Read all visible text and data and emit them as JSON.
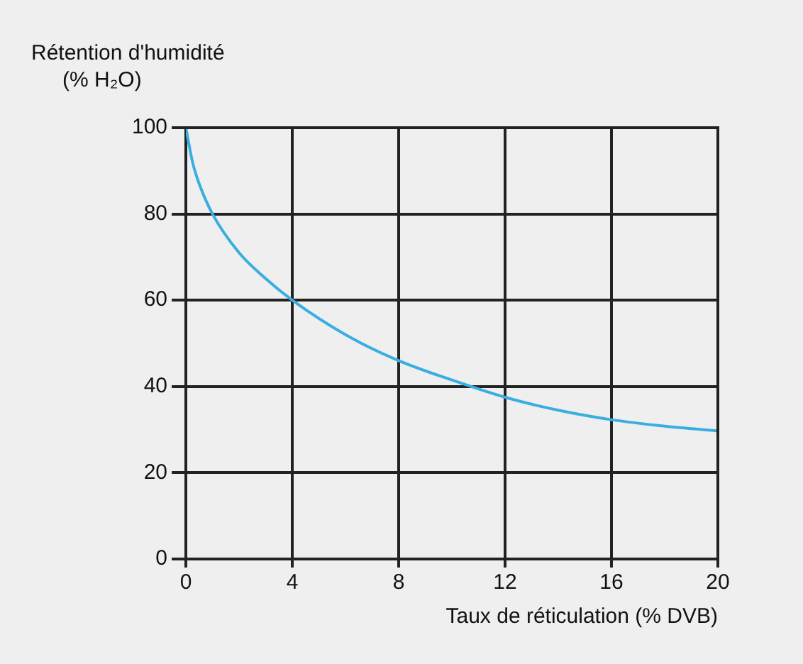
{
  "chart_data": {
    "type": "line",
    "ylabel": "Rétention d'humidité\n(% H₂O)",
    "xlabel": "Taux de réticulation (% DVB)",
    "x": [
      0,
      0.25,
      0.5,
      1,
      2,
      3,
      4,
      6,
      8,
      10,
      12,
      14,
      16,
      18,
      20
    ],
    "series": [
      {
        "color": "#3aaee0",
        "values": [
          100,
          92,
          87,
          80,
          71,
          65,
          60,
          52,
          46,
          41.5,
          37.5,
          34.5,
          32.3,
          30.8,
          29.7
        ]
      }
    ],
    "xlim": [
      0,
      20
    ],
    "xticks": [
      0,
      4,
      8,
      12,
      16,
      20
    ],
    "ylim": [
      0,
      100
    ],
    "yticks": [
      0,
      20,
      40,
      60,
      80,
      100
    ],
    "grid": true,
    "legend": false,
    "marker": "none",
    "line_style": "solid"
  }
}
